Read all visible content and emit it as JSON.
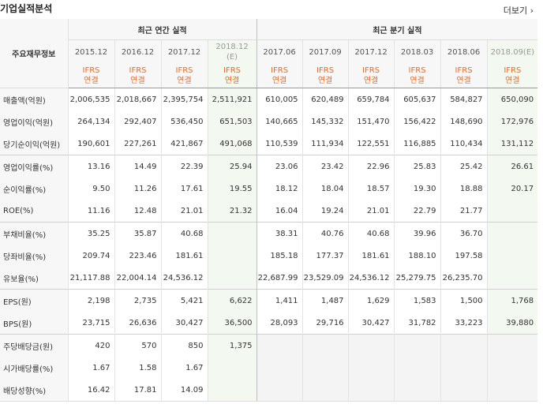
{
  "header": {
    "title": "기업실적분석",
    "more_label": "더보기"
  },
  "table": {
    "row_header_label": "주요재무정보",
    "group_annual": "최근 연간 실적",
    "group_quarter": "최근 분기 실적",
    "periods": [
      "2015.12",
      "2016.12",
      "2017.12",
      "2018.12\n(E)",
      "2017.06",
      "2017.09",
      "2017.12",
      "2018.03",
      "2018.06",
      "2018.09(E)"
    ],
    "basis": [
      "IFRS\n연결",
      "IFRS\n연결",
      "IFRS\n연결",
      "IFRS\n연결",
      "IFRS\n연결",
      "IFRS\n연결",
      "IFRS\n연결",
      "IFRS\n연결",
      "IFRS\n연결",
      "IFRS\n연결"
    ],
    "rows": [
      {
        "label": "매출액(억원)",
        "values": [
          "2,006,535",
          "2,018,667",
          "2,395,754",
          "2,511,921",
          "610,005",
          "620,489",
          "659,784",
          "605,637",
          "584,827",
          "650,090"
        ]
      },
      {
        "label": "영업이익(억원)",
        "values": [
          "264,134",
          "292,407",
          "536,450",
          "651,503",
          "140,665",
          "145,332",
          "151,470",
          "156,422",
          "148,690",
          "172,976"
        ]
      },
      {
        "label": "당기순이익(억원)",
        "values": [
          "190,601",
          "227,261",
          "421,867",
          "491,068",
          "110,539",
          "111,934",
          "122,551",
          "116,885",
          "110,434",
          "131,112"
        ]
      },
      {
        "label": "영업이익률(%)",
        "values": [
          "13.16",
          "14.49",
          "22.39",
          "25.94",
          "23.06",
          "23.42",
          "22.96",
          "25.83",
          "25.42",
          "26.61"
        ]
      },
      {
        "label": "순이익률(%)",
        "values": [
          "9.50",
          "11.26",
          "17.61",
          "19.55",
          "18.12",
          "18.04",
          "18.57",
          "19.30",
          "18.88",
          "20.17"
        ]
      },
      {
        "label": "ROE(%)",
        "values": [
          "11.16",
          "12.48",
          "21.01",
          "21.32",
          "16.04",
          "19.24",
          "21.01",
          "22.79",
          "21.77",
          ""
        ]
      },
      {
        "label": "부채비율(%)",
        "values": [
          "35.25",
          "35.87",
          "40.68",
          "",
          "38.31",
          "40.76",
          "40.68",
          "39.96",
          "36.70",
          ""
        ]
      },
      {
        "label": "당좌비율(%)",
        "values": [
          "209.74",
          "223.46",
          "181.61",
          "",
          "185.18",
          "177.37",
          "181.61",
          "188.10",
          "197.58",
          ""
        ]
      },
      {
        "label": "유보율(%)",
        "values": [
          "21,117.88",
          "22,004.14",
          "24,536.12",
          "",
          "22,687.99",
          "23,529.09",
          "24,536.12",
          "25,279.75",
          "26,235.70",
          ""
        ]
      },
      {
        "label": "EPS(원)",
        "values": [
          "2,198",
          "2,735",
          "5,421",
          "6,622",
          "1,411",
          "1,487",
          "1,629",
          "1,583",
          "1,500",
          "1,768"
        ]
      },
      {
        "label": "BPS(원)",
        "values": [
          "23,715",
          "26,636",
          "30,427",
          "36,500",
          "28,093",
          "29,716",
          "30,427",
          "31,782",
          "33,223",
          "39,880"
        ]
      },
      {
        "label": "주당배당금(원)",
        "values": [
          "420",
          "570",
          "850",
          "1,375",
          "",
          "",
          "",
          "",
          "",
          ""
        ]
      },
      {
        "label": "시가배당률(%)",
        "values": [
          "1.67",
          "1.58",
          "1.67",
          "",
          "",
          "",
          "",
          "",
          "",
          ""
        ]
      },
      {
        "label": "배당성향(%)",
        "values": [
          "16.42",
          "17.81",
          "14.09",
          "",
          "",
          "",
          "",
          "",
          "",
          ""
        ]
      }
    ]
  },
  "colors": {
    "accent": "#ee6b1f",
    "estimate_bg": "#f3f8f0"
  }
}
